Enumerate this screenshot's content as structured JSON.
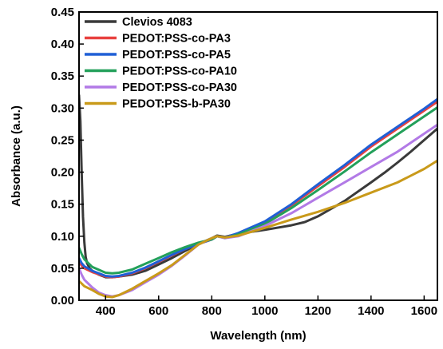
{
  "chart_data": {
    "type": "line",
    "xlabel": "Wavelength (nm)",
    "ylabel": "Absorbance (a.u.)",
    "xlim": [
      300,
      1650
    ],
    "ylim": [
      0,
      0.45
    ],
    "xticks": [
      400,
      600,
      800,
      1000,
      1200,
      1400,
      1600
    ],
    "yticks": [
      0.0,
      0.05,
      0.1,
      0.15,
      0.2,
      0.25,
      0.3,
      0.35,
      0.4,
      0.45
    ],
    "grid": false,
    "legend_position": "top-left",
    "series": [
      {
        "name": "Clevios 4083",
        "color": "#3a3a3a",
        "x": [
          300,
          305,
          310,
          315,
          320,
          325,
          330,
          340,
          350,
          375,
          400,
          425,
          450,
          500,
          550,
          600,
          650,
          700,
          750,
          800,
          820,
          850,
          900,
          1000,
          1100,
          1150,
          1200,
          1300,
          1400,
          1450,
          1500,
          1550,
          1600,
          1650
        ],
        "y": [
          0.32,
          0.28,
          0.2,
          0.13,
          0.09,
          0.068,
          0.058,
          0.05,
          0.046,
          0.04,
          0.036,
          0.036,
          0.037,
          0.04,
          0.046,
          0.056,
          0.066,
          0.077,
          0.088,
          0.097,
          0.101,
          0.099,
          0.104,
          0.11,
          0.117,
          0.122,
          0.131,
          0.155,
          0.184,
          0.199,
          0.215,
          0.232,
          0.25,
          0.268
        ]
      },
      {
        "name": "PEDOT:PSS-co-PA3",
        "color": "#e8413f",
        "x": [
          300,
          310,
          320,
          350,
          400,
          425,
          450,
          500,
          550,
          600,
          650,
          700,
          750,
          800,
          820,
          850,
          900,
          1000,
          1100,
          1200,
          1300,
          1400,
          1500,
          1600,
          1650
        ],
        "y": [
          0.06,
          0.054,
          0.05,
          0.044,
          0.037,
          0.036,
          0.037,
          0.042,
          0.05,
          0.06,
          0.07,
          0.08,
          0.088,
          0.095,
          0.1,
          0.098,
          0.104,
          0.121,
          0.148,
          0.178,
          0.208,
          0.24,
          0.268,
          0.296,
          0.31
        ]
      },
      {
        "name": "PEDOT:PSS-co-PA5",
        "color": "#1f5fd6",
        "x": [
          300,
          310,
          320,
          350,
          400,
          425,
          450,
          500,
          550,
          600,
          650,
          700,
          750,
          800,
          820,
          850,
          900,
          1000,
          1100,
          1200,
          1300,
          1400,
          1500,
          1600,
          1650
        ],
        "y": [
          0.066,
          0.058,
          0.053,
          0.046,
          0.038,
          0.037,
          0.038,
          0.043,
          0.051,
          0.061,
          0.071,
          0.08,
          0.088,
          0.095,
          0.1,
          0.098,
          0.105,
          0.123,
          0.15,
          0.181,
          0.211,
          0.243,
          0.271,
          0.299,
          0.314
        ]
      },
      {
        "name": "PEDOT:PSS-co-PA10",
        "color": "#23a05a",
        "x": [
          300,
          310,
          320,
          350,
          400,
          425,
          450,
          500,
          550,
          600,
          650,
          700,
          750,
          800,
          820,
          850,
          900,
          1000,
          1100,
          1200,
          1300,
          1400,
          1500,
          1600,
          1650
        ],
        "y": [
          0.082,
          0.072,
          0.064,
          0.052,
          0.043,
          0.042,
          0.043,
          0.048,
          0.057,
          0.066,
          0.075,
          0.083,
          0.09,
          0.095,
          0.1,
          0.097,
          0.103,
          0.119,
          0.144,
          0.172,
          0.201,
          0.231,
          0.259,
          0.287,
          0.301
        ]
      },
      {
        "name": "PEDOT:PSS-co-PA30",
        "color": "#b27ae6",
        "x": [
          300,
          310,
          320,
          350,
          375,
          400,
          425,
          450,
          500,
          550,
          600,
          650,
          700,
          750,
          800,
          820,
          850,
          900,
          1000,
          1100,
          1200,
          1300,
          1400,
          1500,
          1600,
          1650
        ],
        "y": [
          0.05,
          0.04,
          0.032,
          0.02,
          0.012,
          0.008,
          0.006,
          0.008,
          0.016,
          0.028,
          0.04,
          0.054,
          0.07,
          0.087,
          0.097,
          0.1,
          0.097,
          0.1,
          0.116,
          0.136,
          0.16,
          0.184,
          0.208,
          0.232,
          0.26,
          0.274
        ]
      },
      {
        "name": "PEDOT:PSS-b-PA30",
        "color": "#c99a1a",
        "x": [
          300,
          310,
          320,
          350,
          375,
          400,
          425,
          450,
          500,
          550,
          600,
          650,
          700,
          750,
          800,
          820,
          850,
          900,
          1000,
          1100,
          1200,
          1300,
          1400,
          1500,
          1600,
          1650
        ],
        "y": [
          0.03,
          0.026,
          0.022,
          0.016,
          0.01,
          0.006,
          0.005,
          0.008,
          0.018,
          0.03,
          0.042,
          0.055,
          0.071,
          0.087,
          0.097,
          0.1,
          0.098,
          0.101,
          0.113,
          0.126,
          0.138,
          0.152,
          0.168,
          0.184,
          0.205,
          0.218
        ]
      }
    ]
  }
}
